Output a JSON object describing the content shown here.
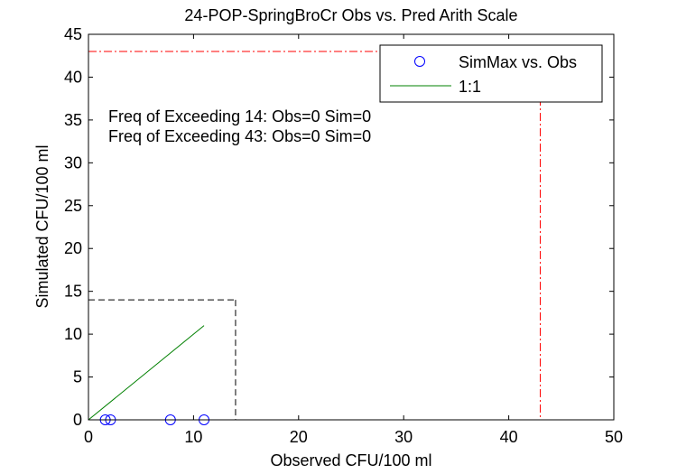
{
  "chart_data": {
    "type": "scatter",
    "title": "24-POP-SpringBroCr Obs vs. Pred Arith Scale",
    "xlabel": "Observed CFU/100 ml",
    "ylabel": "Simulated CFU/100 ml",
    "xlim": [
      0,
      50
    ],
    "ylim": [
      0,
      45
    ],
    "xticks": [
      0,
      10,
      20,
      30,
      40,
      50
    ],
    "yticks": [
      0,
      5,
      10,
      15,
      20,
      25,
      30,
      35,
      40,
      45
    ],
    "grid": false,
    "legend_position": "top-right",
    "series": [
      {
        "name": "SimMax vs. Obs",
        "kind": "scatter",
        "marker": "circle",
        "color": "#0000ff",
        "points": [
          [
            1.6,
            0
          ],
          [
            2.1,
            0
          ],
          [
            7.8,
            0
          ],
          [
            11.0,
            0
          ]
        ]
      },
      {
        "name": "1:1",
        "kind": "line",
        "color": "#008000",
        "points": [
          [
            0,
            0
          ],
          [
            11,
            11
          ]
        ]
      }
    ],
    "reference_lines": [
      {
        "kind": "box",
        "color": "#000000",
        "style": "dashed",
        "x": 14,
        "y": 14
      },
      {
        "kind": "box",
        "color": "#ff0000",
        "style": "dashdot",
        "x": 43,
        "y": 43
      }
    ],
    "annotations": [
      "Freq of Exceeding 14: Obs=0 Sim=0",
      "Freq of Exceeding 43: Obs=0 Sim=0"
    ]
  }
}
